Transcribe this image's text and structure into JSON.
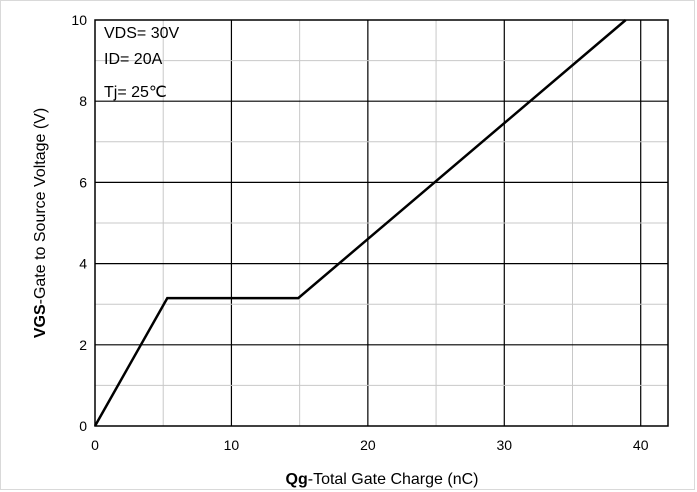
{
  "chart_data": {
    "type": "line",
    "title": "",
    "xlabel_bold": "Qg",
    "xlabel_rest": "-Total Gate Charge (nC)",
    "ylabel_bold": "VGS",
    "ylabel_rest": "-Gate to Source Voltage (V)",
    "xlim": [
      0,
      42
    ],
    "ylim": [
      0,
      10
    ],
    "xticks": [
      0,
      10,
      20,
      30,
      40
    ],
    "yticks": [
      0,
      2,
      4,
      6,
      8,
      10
    ],
    "xtick_labels": [
      "0",
      "10",
      "20",
      "30",
      "40"
    ],
    "ytick_labels": [
      "0",
      "2",
      "4",
      "6",
      "8",
      "10"
    ],
    "grid": true,
    "annotations": [
      "VDS= 30V",
      "ID= 20A",
      "Tj= 25℃"
    ],
    "series": [
      {
        "x": [
          0,
          5.3,
          14.9,
          38.9
        ],
        "y": [
          0,
          3.15,
          3.15,
          10.0
        ]
      }
    ]
  }
}
